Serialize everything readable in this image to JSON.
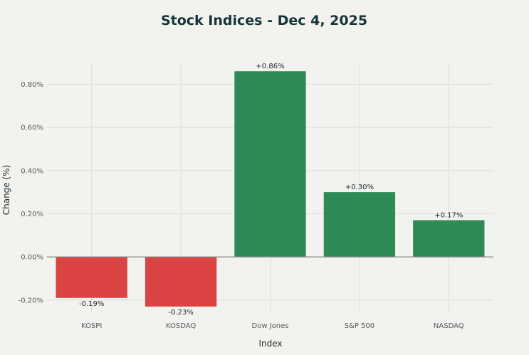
{
  "chart_data": {
    "type": "bar",
    "title": "Stock Indices - Dec 4, 2025",
    "xlabel": "Index",
    "ylabel": "Change (%)",
    "categories": [
      "KOSPI",
      "KOSDAQ",
      "Dow Jones",
      "S&P 500",
      "NASDAQ"
    ],
    "values": [
      -0.19,
      -0.23,
      0.86,
      0.3,
      0.17
    ],
    "data_labels": [
      "-0.19%",
      "-0.23%",
      "+0.86%",
      "+0.30%",
      "+0.17%"
    ],
    "yticks": [
      -0.2,
      0.0,
      0.2,
      0.4,
      0.6,
      0.8
    ],
    "ytick_labels": [
      "-0.20%",
      "0.00%",
      "0.20%",
      "0.40%",
      "0.60%",
      "0.80%"
    ],
    "ylim": [
      -0.26,
      0.92
    ],
    "grid": true,
    "legend": "none",
    "colors": {
      "positive": "#2e8b57",
      "negative": "#dc4444"
    }
  }
}
